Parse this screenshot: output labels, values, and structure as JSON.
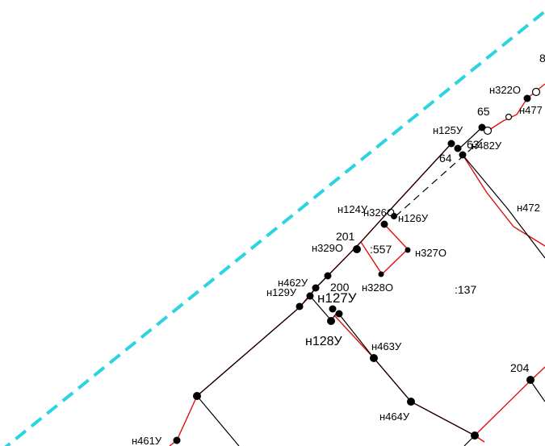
{
  "colors": {
    "boundary_dashed": "#2ad4e0",
    "red_line": "#e01010",
    "black_line": "#000000",
    "background": "#ffffff"
  },
  "labels": {
    "n322o": "н322О",
    "n477": "н477",
    "eight": "8",
    "p65": "65",
    "n125u": "н125У",
    "p63": "63",
    "n482u": "н482У",
    "p64": "64",
    "n472": "н472",
    "n124u": "н124У",
    "n326o": "н326О",
    "n126u": "н126У",
    "p201": "201",
    "n329o": "н329О",
    "parcel557": ":557",
    "n327o": "н327О",
    "n462u": "н462У",
    "p200": "200",
    "n129u": "н129У",
    "n127u": "н127У",
    "n328o": "н328О",
    "parcel137": ":137",
    "n128u": "н128У",
    "n463u": "н463У",
    "p204": "204",
    "n464u": "н464У",
    "n461u": "н461У"
  }
}
